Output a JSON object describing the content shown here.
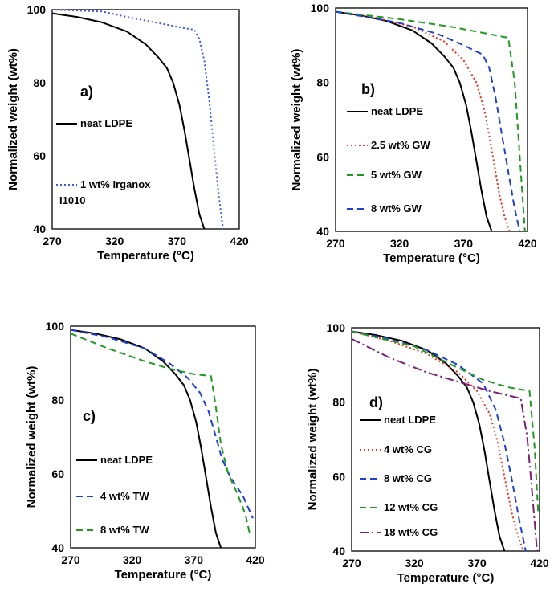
{
  "chart_data": [
    {
      "type": "line",
      "panel_label": "a)",
      "xlabel": "Temperature (°C)",
      "ylabel": "Normalized weight (wt%)",
      "xlim": [
        270,
        420
      ],
      "ylim": [
        40,
        100
      ],
      "xticks": [
        "270",
        "320",
        "370",
        "420"
      ],
      "yticks": [
        "40",
        "60",
        "80",
        "100"
      ],
      "legend_position": "left",
      "series": [
        {
          "name": "neat LDPE",
          "color": "#000000",
          "dash": "solid",
          "x": [
            270,
            290,
            310,
            330,
            345,
            355,
            362,
            367,
            372,
            376,
            380,
            384,
            388,
            392
          ],
          "y": [
            99,
            98,
            96.5,
            94,
            90.5,
            87,
            84,
            80,
            74,
            67,
            59,
            51,
            44,
            40
          ]
        },
        {
          "name": "1 wt% Irganox I1010",
          "color": "#3b5bdb",
          "dash": "dotted",
          "x": [
            270,
            310,
            330,
            360,
            375,
            384,
            388,
            392,
            396,
            400,
            404,
            407
          ],
          "y": [
            100,
            99.5,
            98,
            96,
            95,
            94.5,
            92,
            86,
            75,
            61,
            48,
            40
          ]
        }
      ]
    },
    {
      "type": "line",
      "panel_label": "b)",
      "xlabel": "Temperature (°C)",
      "ylabel": "Normalized weight (wt%)",
      "xlim": [
        270,
        420
      ],
      "ylim": [
        40,
        100
      ],
      "xticks": [
        "270",
        "320",
        "370",
        "420"
      ],
      "yticks": [
        "40",
        "60",
        "80",
        "100"
      ],
      "legend_position": "left",
      "series": [
        {
          "name": "neat LDPE",
          "color": "#000000",
          "dash": "solid",
          "x": [
            270,
            290,
            310,
            330,
            345,
            355,
            362,
            367,
            372,
            376,
            380,
            384,
            388,
            392
          ],
          "y": [
            99,
            98,
            96.5,
            94,
            90.5,
            87,
            84,
            80,
            74,
            67,
            59,
            51,
            44,
            40
          ]
        },
        {
          "name": "2.5 wt% GW",
          "color": "#e8301c",
          "dash": "dotted",
          "x": [
            270,
            300,
            330,
            355,
            370,
            380,
            386,
            390,
            394,
            398,
            402,
            406
          ],
          "y": [
            99,
            97.5,
            95,
            91,
            86,
            80,
            73,
            66,
            58,
            50,
            44,
            40
          ]
        },
        {
          "name": "5 wt% GW",
          "color": "#1f9a1f",
          "dash": "dashed",
          "x": [
            270,
            320,
            360,
            390,
            405,
            410,
            414,
            418
          ],
          "y": [
            99,
            97,
            95,
            93,
            92,
            80,
            60,
            40
          ]
        },
        {
          "name": "8 wt% GW",
          "color": "#1f3fd6",
          "dash": "dashed",
          "x": [
            270,
            320,
            350,
            370,
            385,
            390,
            395,
            400,
            405,
            410,
            414
          ],
          "y": [
            99,
            96,
            93,
            90,
            87.5,
            84,
            76,
            66,
            56,
            46,
            40
          ]
        }
      ]
    },
    {
      "type": "line",
      "panel_label": "c)",
      "xlabel": "Temperature (°C)",
      "ylabel": "Normalized weight (wt%)",
      "xlim": [
        270,
        420
      ],
      "ylim": [
        40,
        100
      ],
      "xticks": [
        "270",
        "320",
        "370",
        "420"
      ],
      "yticks": [
        "40",
        "60",
        "80",
        "100"
      ],
      "legend_position": "left",
      "series": [
        {
          "name": "neat LDPE",
          "color": "#000000",
          "dash": "solid",
          "x": [
            270,
            290,
            310,
            330,
            345,
            355,
            362,
            367,
            372,
            376,
            380,
            384,
            388,
            392
          ],
          "y": [
            99,
            98,
            96.5,
            94,
            90.5,
            87,
            84,
            80,
            74,
            67,
            59,
            51,
            44,
            40
          ]
        },
        {
          "name": "4 wt% TW",
          "color": "#1f3fd6",
          "dash": "dashed",
          "x": [
            270,
            300,
            330,
            350,
            365,
            375,
            382,
            388,
            393,
            400,
            410,
            418
          ],
          "y": [
            99,
            97,
            94,
            90,
            86,
            82,
            77,
            70,
            64,
            59,
            54,
            48
          ]
        },
        {
          "name": "8 wt% TW",
          "color": "#1f9a1f",
          "dash": "dashed",
          "x": [
            270,
            300,
            330,
            350,
            370,
            384,
            388,
            392,
            398,
            405,
            412,
            416
          ],
          "y": [
            98,
            94,
            90.5,
            88.5,
            87,
            86.5,
            78,
            68,
            60,
            55,
            49,
            43
          ]
        }
      ]
    },
    {
      "type": "line",
      "panel_label": "d)",
      "xlabel": "Temperature (°C)",
      "ylabel": "Normalized weight (wt%)",
      "xlim": [
        270,
        420
      ],
      "ylim": [
        40,
        100
      ],
      "xticks": [
        "270",
        "320",
        "370",
        "420"
      ],
      "yticks": [
        "40",
        "60",
        "80",
        "100"
      ],
      "legend_position": "left",
      "series": [
        {
          "name": "neat LDPE",
          "color": "#000000",
          "dash": "solid",
          "x": [
            270,
            290,
            310,
            330,
            345,
            355,
            362,
            367,
            372,
            376,
            380,
            384,
            388,
            392
          ],
          "y": [
            99,
            98,
            96.5,
            94,
            90.5,
            87,
            84,
            80,
            74,
            67,
            59,
            51,
            44,
            40
          ]
        },
        {
          "name": "4 wt% CG",
          "color": "#e8301c",
          "dash": "dotted",
          "x": [
            270,
            300,
            330,
            355,
            370,
            380,
            386,
            392,
            398,
            403,
            407
          ],
          "y": [
            99,
            96.5,
            93,
            88,
            83,
            77,
            70,
            60,
            50,
            44,
            40
          ]
        },
        {
          "name": "8 wt% CG",
          "color": "#1f3fd6",
          "dash": "dashed",
          "x": [
            270,
            300,
            330,
            355,
            375,
            385,
            392,
            398,
            404,
            409
          ],
          "y": [
            99,
            97,
            94,
            90,
            85,
            78,
            69,
            59,
            48,
            40
          ]
        },
        {
          "name": "12 wt% CG",
          "color": "#1f9a1f",
          "dash": "dashed",
          "x": [
            270,
            320,
            350,
            375,
            395,
            412,
            416,
            419
          ],
          "y": [
            99,
            95,
            90,
            86,
            84,
            83,
            68,
            50
          ]
        },
        {
          "name": "18 wt% CG",
          "color": "#7b1f7b",
          "dash": "dashdot",
          "x": [
            270,
            300,
            330,
            360,
            380,
            405,
            410,
            413,
            416,
            418
          ],
          "y": [
            97,
            92,
            88,
            85,
            83,
            81,
            71,
            60,
            48,
            40
          ]
        }
      ]
    }
  ]
}
